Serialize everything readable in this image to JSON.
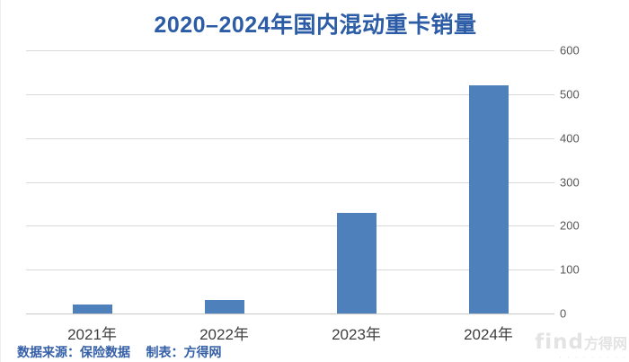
{
  "page_title": "2020–2024年国内混动重卡销量",
  "chart_data": {
    "type": "bar",
    "title": "2020–2024年国内混动重卡销量",
    "categories": [
      "2021年",
      "2022年",
      "2023年",
      "2024年"
    ],
    "values": [
      20,
      30,
      230,
      520
    ],
    "xlabel": "",
    "ylabel": "",
    "ylim": [
      0,
      600
    ],
    "yticks": [
      0,
      100,
      200,
      300,
      400,
      500,
      600
    ],
    "yaxis_position": "right",
    "grid": true,
    "legend": false,
    "bar_color": "#4E80BC"
  },
  "footer": {
    "source": "数据来源：保险数据",
    "credit": "制表：方得网"
  },
  "watermark": {
    "latin": "find",
    "cn": "方得网",
    "dots": "· · · · · · · · ·"
  },
  "colors": {
    "title": "#2B5CA5",
    "bar": "#4E80BC",
    "grid": "#D9D9D9",
    "axis_line": "#C8C8C8",
    "ytick_label": "#595959",
    "xtick_label": "#3F3F3F",
    "footer": "#3560A8",
    "watermark": "#E3E3E3"
  }
}
